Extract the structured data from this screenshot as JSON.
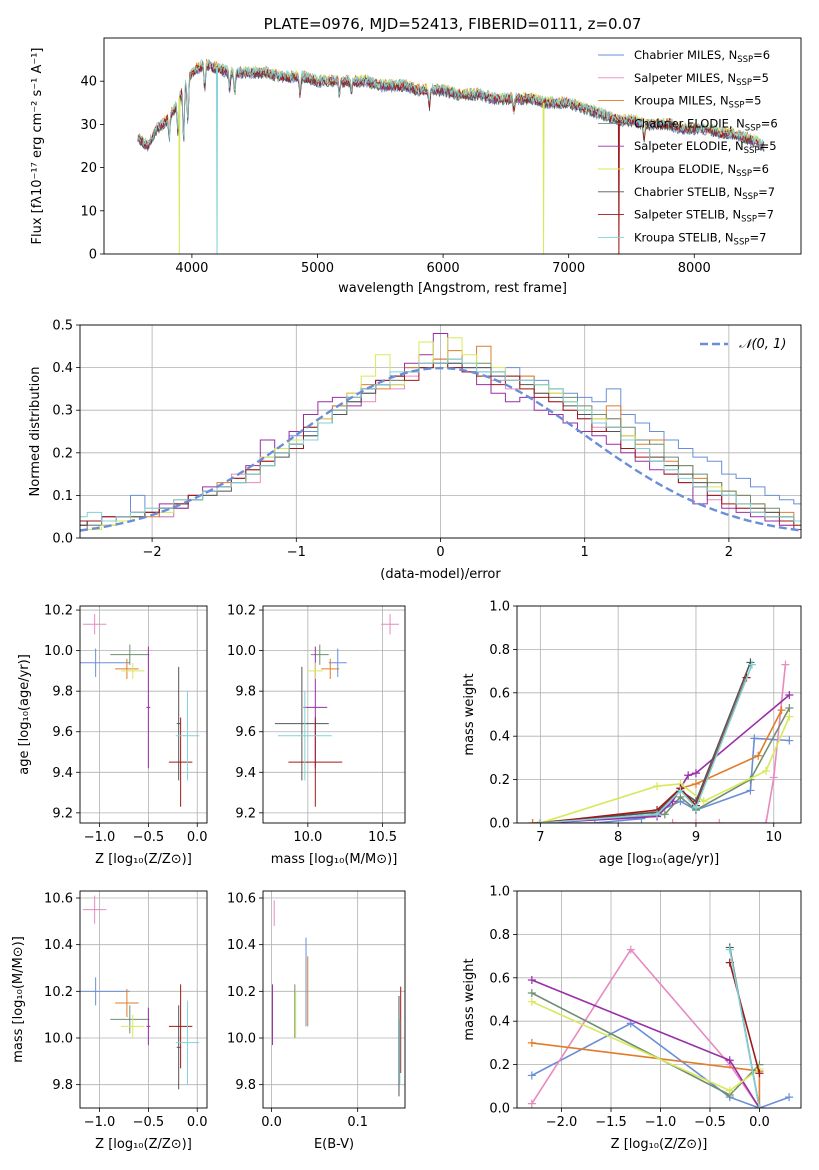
{
  "colors": {
    "Chabrier MILES": "#6a8fd8",
    "Salpeter MILES": "#e88ac0",
    "Kroupa MILES": "#e07c2a",
    "Chabrier ELODIE": "#6f8f70",
    "Salpeter ELODIE": "#9a2ea8",
    "Kroupa ELODIE": "#d8e85a",
    "Chabrier STELIB": "#555555",
    "Salpeter STELIB": "#9e1a1a",
    "Kroupa STELIB": "#7fd3d8",
    "grid": "#b0b0b0",
    "normal_curve": "#6a8fd8"
  },
  "chart_data": [
    {
      "id": "spectrum",
      "type": "line",
      "title": "PLATE=0976, MJD=52413, FIBERID=0111, z=0.07",
      "xlabel": "wavelength [Angstrom, rest frame]",
      "ylabel": "Flux [fλ10⁻¹⁷ erg cm⁻² s⁻¹ A⁻¹]",
      "xlim": [
        3300,
        8850
      ],
      "ylim": [
        0,
        50
      ],
      "xticks": [
        4000,
        5000,
        6000,
        7000,
        8000
      ],
      "yticks": [
        0,
        10,
        20,
        30,
        40
      ],
      "grid": false,
      "legend_placement": "top-right",
      "legend": [
        {
          "name": "Chabrier MILES",
          "nssp": "6"
        },
        {
          "name": "Salpeter MILES",
          "nssp": "5"
        },
        {
          "name": "Kroupa MILES",
          "nssp": "5"
        },
        {
          "name": "Chabrier ELODIE",
          "nssp": "6"
        },
        {
          "name": "Salpeter ELODIE",
          "nssp": "5"
        },
        {
          "name": "Kroupa ELODIE",
          "nssp": "6"
        },
        {
          "name": "Chabrier STELIB",
          "nssp": "7"
        },
        {
          "name": "Salpeter STELIB",
          "nssp": "7"
        },
        {
          "name": "Kroupa STELIB",
          "nssp": "7"
        }
      ],
      "continuum": [
        [
          3570,
          27
        ],
        [
          3650,
          25
        ],
        [
          3720,
          29
        ],
        [
          3800,
          31
        ],
        [
          3870,
          34
        ],
        [
          3900,
          36
        ],
        [
          3950,
          39
        ],
        [
          4000,
          42
        ],
        [
          4100,
          44
        ],
        [
          4200,
          43
        ],
        [
          4300,
          42
        ],
        [
          4400,
          42
        ],
        [
          4500,
          42
        ],
        [
          4600,
          42
        ],
        [
          4700,
          41
        ],
        [
          4800,
          41
        ],
        [
          4900,
          41
        ],
        [
          5000,
          40
        ],
        [
          5100,
          40
        ],
        [
          5200,
          40
        ],
        [
          5300,
          40
        ],
        [
          5400,
          40
        ],
        [
          5500,
          39
        ],
        [
          5600,
          39
        ],
        [
          5700,
          39
        ],
        [
          5800,
          38
        ],
        [
          5900,
          38
        ],
        [
          6000,
          38
        ],
        [
          6100,
          37
        ],
        [
          6200,
          37
        ],
        [
          6300,
          37
        ],
        [
          6400,
          36
        ],
        [
          6500,
          36
        ],
        [
          6600,
          36
        ],
        [
          6700,
          36
        ],
        [
          6800,
          35
        ],
        [
          6900,
          35
        ],
        [
          7000,
          35
        ],
        [
          7100,
          34
        ],
        [
          7200,
          33
        ],
        [
          7300,
          32
        ],
        [
          7400,
          31
        ],
        [
          7500,
          31
        ],
        [
          7600,
          30
        ],
        [
          7700,
          30
        ],
        [
          7800,
          30
        ],
        [
          7900,
          29
        ],
        [
          8000,
          29
        ],
        [
          8100,
          29
        ],
        [
          8200,
          28
        ],
        [
          8300,
          28
        ],
        [
          8400,
          27
        ],
        [
          8500,
          26
        ],
        [
          8550,
          25
        ]
      ],
      "dropouts": [
        {
          "series": "Kroupa ELODIE",
          "x": 3900,
          "y": 0
        },
        {
          "series": "Kroupa STELIB",
          "x": 4200,
          "y": 0
        },
        {
          "series": "Kroupa ELODIE",
          "x": 6800,
          "y": 0
        },
        {
          "series": "Salpeter STELIB",
          "x": 7400,
          "y": 0
        }
      ]
    },
    {
      "id": "residual-histogram",
      "type": "line",
      "xlabel": "(data-model)/error",
      "ylabel": "Normed distribution",
      "xlim": [
        -2.5,
        2.5
      ],
      "ylim": [
        0,
        0.5
      ],
      "xticks": [
        -2,
        -1,
        0,
        1,
        2
      ],
      "yticks": [
        0.0,
        0.1,
        0.2,
        0.3,
        0.4,
        0.5
      ],
      "grid": true,
      "legend_placement": "top-right",
      "legend": [
        {
          "name": "𝒩(0, 1)"
        }
      ],
      "bin_width": 0.1
    },
    {
      "id": "age-vs-Z",
      "type": "scatter",
      "xlabel": "Z [log₁₀(Z/Z⊙)]",
      "ylabel": "age  [log₁₀(age/yr)]",
      "xlim": [
        -1.2,
        0.1
      ],
      "ylim": [
        9.15,
        10.22
      ],
      "xticks": [
        -1.0,
        -0.5,
        0.0
      ],
      "yticks": [
        9.2,
        9.4,
        9.6,
        9.8,
        10.0,
        10.2
      ],
      "grid": true
    },
    {
      "id": "age-vs-mass",
      "type": "scatter",
      "xlabel": "mass [log₁₀(M/M⊙)]",
      "ylabel": "",
      "xlim": [
        9.7,
        10.65
      ],
      "ylim": [
        9.15,
        10.22
      ],
      "xticks": [
        10.0,
        10.5
      ],
      "yticks": [
        9.2,
        9.4,
        9.6,
        9.8,
        10.0,
        10.2
      ],
      "grid": true
    },
    {
      "id": "weight-vs-age",
      "type": "line",
      "xlabel": "age  [log₁₀(age/yr)]",
      "ylabel": "mass weight",
      "xlim": [
        6.7,
        10.35
      ],
      "ylim": [
        0,
        1
      ],
      "xticks": [
        7,
        8,
        9,
        10
      ],
      "yticks": [
        0.0,
        0.2,
        0.4,
        0.6,
        0.8,
        1.0
      ],
      "grid": true
    },
    {
      "id": "mass-vs-Z",
      "type": "scatter",
      "xlabel": "Z [log₁₀(Z/Z⊙)]",
      "ylabel": "mass [log₁₀(M/M⊙)]",
      "xlim": [
        -1.2,
        0.1
      ],
      "ylim": [
        9.7,
        10.63
      ],
      "xticks": [
        -1.0,
        -0.5,
        0.0
      ],
      "yticks": [
        9.8,
        10.0,
        10.2,
        10.4,
        10.6
      ],
      "grid": true
    },
    {
      "id": "mass-vs-EBV",
      "type": "scatter",
      "xlabel": "E(B-V)",
      "ylabel": "",
      "xlim": [
        -0.01,
        0.155
      ],
      "ylim": [
        9.7,
        10.63
      ],
      "xticks": [
        0.0,
        0.1
      ],
      "yticks": [
        9.8,
        10.0,
        10.2,
        10.4,
        10.6
      ],
      "grid": true
    },
    {
      "id": "weight-vs-Z",
      "type": "line",
      "xlabel": "Z [log₁₀(Z/Z⊙)]",
      "ylabel": "mass weight",
      "xlim": [
        -2.45,
        0.42
      ],
      "ylim": [
        0,
        1
      ],
      "xticks": [
        -2.0,
        -1.5,
        -1.0,
        -0.5,
        0.0
      ],
      "yticks": [
        0.0,
        0.2,
        0.4,
        0.6,
        0.8,
        1.0
      ],
      "grid": true
    }
  ],
  "series": [
    {
      "name": "Chabrier MILES",
      "Z": -1.04,
      "Zerr": 0.35,
      "age": 9.94,
      "ageerr": 0.07,
      "mass": 10.2,
      "masserr": 0.06,
      "ebv": 0.04,
      "ebvlow": 10.05,
      "ebvhigh": 10.43,
      "hist": [
        0.02,
        0.03,
        0.04,
        0.05,
        0.1,
        0.06,
        0.05,
        0.08,
        0.09,
        0.11,
        0.12,
        0.14,
        0.16,
        0.19,
        0.21,
        0.24,
        0.25,
        0.27,
        0.3,
        0.33,
        0.35,
        0.36,
        0.38,
        0.4,
        0.41,
        0.42,
        0.41,
        0.4,
        0.39,
        0.38,
        0.4,
        0.37,
        0.37,
        0.35,
        0.34,
        0.33,
        0.32,
        0.35,
        0.29,
        0.27,
        0.25,
        0.23,
        0.21,
        0.19,
        0.18,
        0.15,
        0.14,
        0.12,
        0.1,
        0.09,
        0.08
      ],
      "ages": [
        6.9,
        7.7,
        8.3,
        8.8,
        9.0,
        9.7,
        9.75,
        10.2
      ],
      "wage": [
        0.0,
        0.0,
        0.02,
        0.1,
        0.06,
        0.15,
        0.39,
        0.38
      ],
      "zs": [
        -2.3,
        -1.3,
        -0.3,
        0.0,
        0.3
      ],
      "wz": [
        0.15,
        0.39,
        0.05,
        0.0,
        0.05
      ]
    },
    {
      "name": "Salpeter MILES",
      "Z": -1.05,
      "Zerr": 0.12,
      "age": 10.13,
      "ageerr": 0.05,
      "mass": 10.55,
      "masserr": 0.06,
      "ebv": 0.003,
      "ebvlow": 10.48,
      "ebvhigh": 10.59,
      "hist": [
        0.03,
        0.04,
        0.05,
        0.04,
        0.06,
        0.07,
        0.05,
        0.08,
        0.1,
        0.11,
        0.12,
        0.15,
        0.13,
        0.18,
        0.2,
        0.23,
        0.26,
        0.28,
        0.31,
        0.34,
        0.32,
        0.36,
        0.35,
        0.38,
        0.4,
        0.41,
        0.42,
        0.39,
        0.4,
        0.37,
        0.35,
        0.38,
        0.34,
        0.32,
        0.3,
        0.28,
        0.26,
        0.28,
        0.24,
        0.2,
        0.19,
        0.16,
        0.15,
        0.12,
        0.09,
        0.1,
        0.07,
        0.06,
        0.04,
        0.03,
        0.02
      ],
      "ages": [
        8.7,
        9.0,
        9.3,
        9.9,
        10.0,
        10.15
      ],
      "wage": [
        0.0,
        0.0,
        0.0,
        0.0,
        0.21,
        0.73
      ],
      "zs": [
        -2.3,
        -1.3,
        -0.3,
        0.0
      ],
      "wz": [
        0.02,
        0.73,
        0.2,
        0.0
      ]
    },
    {
      "name": "Kroupa MILES",
      "Z": -0.72,
      "Zerr": 0.12,
      "age": 9.91,
      "ageerr": 0.05,
      "mass": 10.15,
      "masserr": 0.06,
      "ebv": 0.042,
      "ebvlow": 10.05,
      "ebvhigh": 10.35,
      "hist": [
        0.02,
        0.04,
        0.03,
        0.05,
        0.06,
        0.05,
        0.07,
        0.09,
        0.1,
        0.11,
        0.13,
        0.14,
        0.16,
        0.18,
        0.21,
        0.22,
        0.26,
        0.28,
        0.31,
        0.34,
        0.36,
        0.35,
        0.37,
        0.4,
        0.41,
        0.42,
        0.44,
        0.41,
        0.45,
        0.39,
        0.37,
        0.38,
        0.36,
        0.34,
        0.32,
        0.3,
        0.28,
        0.31,
        0.24,
        0.22,
        0.23,
        0.18,
        0.17,
        0.14,
        0.13,
        0.11,
        0.1,
        0.08,
        0.06,
        0.06,
        0.04
      ],
      "ages": [
        6.9,
        8.5,
        8.8,
        9.0,
        9.8,
        10.1
      ],
      "wage": [
        0.0,
        0.05,
        0.16,
        0.18,
        0.31,
        0.52
      ],
      "zs": [
        -2.3,
        0.0,
        0.0
      ],
      "wz": [
        0.3,
        0.17,
        0.0
      ]
    },
    {
      "name": "Chabrier ELODIE",
      "Z": -0.69,
      "Zerr": 0.2,
      "age": 9.98,
      "ageerr": 0.05,
      "mass": 10.08,
      "masserr": 0.06,
      "ebv": 0.027,
      "ebvlow": 10.0,
      "ebvhigh": 10.23,
      "hist": [
        0.03,
        0.03,
        0.04,
        0.04,
        0.05,
        0.06,
        0.07,
        0.07,
        0.09,
        0.1,
        0.12,
        0.13,
        0.15,
        0.17,
        0.2,
        0.22,
        0.24,
        0.27,
        0.3,
        0.32,
        0.34,
        0.36,
        0.37,
        0.39,
        0.4,
        0.41,
        0.42,
        0.4,
        0.41,
        0.39,
        0.38,
        0.37,
        0.36,
        0.35,
        0.33,
        0.31,
        0.29,
        0.28,
        0.26,
        0.23,
        0.22,
        0.19,
        0.17,
        0.15,
        0.13,
        0.11,
        0.1,
        0.08,
        0.07,
        0.05,
        0.04
      ],
      "ages": [
        7.0,
        8.6,
        8.8,
        9.0,
        9.7,
        10.2
      ],
      "wage": [
        0.0,
        0.04,
        0.12,
        0.06,
        0.2,
        0.53
      ],
      "zs": [
        -2.3,
        -0.3,
        0.0
      ],
      "wz": [
        0.53,
        0.06,
        0.2
      ]
    },
    {
      "name": "Salpeter ELODIE",
      "Z": -0.5,
      "Zerr": 0.02,
      "age": 9.72,
      "ageerr": 0.3,
      "mass": 10.05,
      "masserr": 0.08,
      "ebv": 0.001,
      "ebvlow": 9.97,
      "ebvhigh": 10.23,
      "hist": [
        0.03,
        0.04,
        0.05,
        0.04,
        0.05,
        0.06,
        0.08,
        0.07,
        0.1,
        0.12,
        0.12,
        0.14,
        0.17,
        0.23,
        0.21,
        0.25,
        0.29,
        0.32,
        0.33,
        0.31,
        0.35,
        0.37,
        0.36,
        0.41,
        0.43,
        0.48,
        0.4,
        0.39,
        0.36,
        0.34,
        0.32,
        0.33,
        0.3,
        0.29,
        0.27,
        0.25,
        0.24,
        0.22,
        0.2,
        0.18,
        0.16,
        0.15,
        0.13,
        0.08,
        0.1,
        0.07,
        0.06,
        0.05,
        0.04,
        0.03,
        0.02
      ],
      "ages": [
        7.0,
        8.5,
        8.7,
        8.9,
        9.0,
        10.2
      ],
      "wage": [
        0.0,
        0.03,
        0.1,
        0.22,
        0.23,
        0.59
      ],
      "zs": [
        -2.3,
        -0.3,
        0.0
      ],
      "wz": [
        0.59,
        0.22,
        0.0
      ]
    },
    {
      "name": "Kroupa ELODIE",
      "Z": -0.66,
      "Zerr": 0.12,
      "age": 9.9,
      "ageerr": 0.04,
      "mass": 10.05,
      "masserr": 0.05,
      "ebv": 0.028,
      "ebvlow": 10.0,
      "ebvhigh": 10.2,
      "hist": [
        0.02,
        0.02,
        0.03,
        0.04,
        0.05,
        0.06,
        0.06,
        0.08,
        0.09,
        0.1,
        0.12,
        0.14,
        0.16,
        0.19,
        0.21,
        0.23,
        0.26,
        0.28,
        0.3,
        0.34,
        0.38,
        0.43,
        0.36,
        0.39,
        0.46,
        0.4,
        0.47,
        0.43,
        0.38,
        0.4,
        0.37,
        0.35,
        0.36,
        0.34,
        0.32,
        0.3,
        0.28,
        0.26,
        0.24,
        0.21,
        0.19,
        0.17,
        0.15,
        0.13,
        0.12,
        0.1,
        0.08,
        0.07,
        0.05,
        0.04,
        0.03
      ],
      "ages": [
        7.0,
        8.5,
        8.8,
        9.1,
        9.9,
        10.2
      ],
      "wage": [
        0.0,
        0.17,
        0.18,
        0.1,
        0.24,
        0.49
      ],
      "zs": [
        -2.3,
        -0.3,
        0.0
      ],
      "wz": [
        0.49,
        0.08,
        0.18
      ]
    },
    {
      "name": "Chabrier STELIB",
      "Z": -0.19,
      "Zerr": 0.02,
      "age": 9.64,
      "ageerr": 0.28,
      "mass": 9.96,
      "masserr": 0.18,
      "ebv": 0.148,
      "ebvlow": 9.75,
      "ebvhigh": 10.18,
      "hist": [
        0.03,
        0.04,
        0.04,
        0.05,
        0.05,
        0.06,
        0.07,
        0.08,
        0.09,
        0.1,
        0.11,
        0.13,
        0.15,
        0.17,
        0.19,
        0.22,
        0.24,
        0.27,
        0.29,
        0.32,
        0.34,
        0.36,
        0.38,
        0.39,
        0.4,
        0.41,
        0.41,
        0.4,
        0.4,
        0.38,
        0.37,
        0.36,
        0.34,
        0.33,
        0.31,
        0.29,
        0.27,
        0.25,
        0.23,
        0.21,
        0.19,
        0.17,
        0.15,
        0.13,
        0.11,
        0.1,
        0.08,
        0.07,
        0.06,
        0.05,
        0.04
      ],
      "ages": [
        7.0,
        8.5,
        8.8,
        9.0,
        9.7
      ],
      "wage": [
        0.0,
        0.05,
        0.15,
        0.1,
        0.74
      ],
      "zs": [
        -0.3,
        0.0
      ],
      "wz": [
        0.74,
        0.0
      ]
    },
    {
      "name": "Salpeter STELIB",
      "Z": -0.17,
      "Zerr": 0.12,
      "age": 9.45,
      "ageerr": 0.22,
      "mass": 10.05,
      "masserr": 0.18,
      "ebv": 0.15,
      "ebvlow": 9.85,
      "ebvhigh": 10.22,
      "hist": [
        0.04,
        0.04,
        0.05,
        0.05,
        0.06,
        0.06,
        0.07,
        0.08,
        0.1,
        0.11,
        0.12,
        0.14,
        0.16,
        0.18,
        0.2,
        0.21,
        0.26,
        0.27,
        0.3,
        0.33,
        0.35,
        0.37,
        0.38,
        0.37,
        0.4,
        0.41,
        0.4,
        0.39,
        0.38,
        0.36,
        0.38,
        0.35,
        0.33,
        0.32,
        0.3,
        0.28,
        0.25,
        0.26,
        0.21,
        0.19,
        0.18,
        0.15,
        0.13,
        0.12,
        0.1,
        0.08,
        0.07,
        0.06,
        0.05,
        0.04,
        0.03
      ],
      "ages": [
        7.0,
        8.5,
        8.8,
        9.0,
        9.65
      ],
      "wage": [
        0.0,
        0.06,
        0.16,
        0.08,
        0.67
      ],
      "zs": [
        -0.3,
        0.0
      ],
      "wz": [
        0.67,
        0.16
      ]
    },
    {
      "name": "Kroupa STELIB",
      "Z": -0.1,
      "Zerr": 0.12,
      "age": 9.58,
      "ageerr": 0.22,
      "mass": 9.98,
      "masserr": 0.18,
      "ebv": 0.149,
      "ebvlow": 9.8,
      "ebvhigh": 10.08,
      "hist": [
        0.05,
        0.06,
        0.04,
        0.05,
        0.06,
        0.07,
        0.07,
        0.09,
        0.09,
        0.11,
        0.12,
        0.13,
        0.15,
        0.17,
        0.2,
        0.22,
        0.23,
        0.27,
        0.3,
        0.33,
        0.35,
        0.36,
        0.39,
        0.39,
        0.41,
        0.41,
        0.42,
        0.41,
        0.39,
        0.39,
        0.37,
        0.37,
        0.36,
        0.35,
        0.32,
        0.3,
        0.27,
        0.26,
        0.23,
        0.21,
        0.18,
        0.16,
        0.14,
        0.12,
        0.11,
        0.1,
        0.08,
        0.06,
        0.05,
        0.05,
        0.04
      ],
      "ages": [
        7.0,
        8.5,
        8.8,
        9.0,
        9.72
      ],
      "wage": [
        0.0,
        0.04,
        0.15,
        0.07,
        0.73
      ],
      "zs": [
        -0.3,
        0.0
      ],
      "wz": [
        0.73,
        0.0
      ]
    }
  ]
}
